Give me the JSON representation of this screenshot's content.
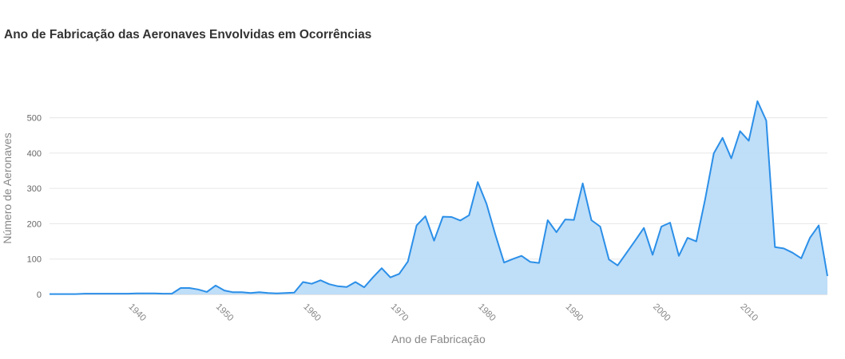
{
  "title": "Ano de Fabricação das Aeronaves Envolvidas em Ocorrências",
  "chart_data": {
    "type": "area",
    "title": "Ano de Fabricação das Aeronaves Envolvidas em Ocorrências",
    "xlabel": "Ano de Fabricação",
    "ylabel": "Número de Aeronaves",
    "xlim": [
      1931,
      2020
    ],
    "ylim": [
      0,
      560
    ],
    "x_ticks": [
      "1940",
      "1950",
      "1960",
      "1970",
      "1980",
      "1990",
      "2000",
      "2010"
    ],
    "y_ticks": [
      "0",
      "100",
      "200",
      "300",
      "400",
      "500"
    ],
    "grid": true,
    "legend": "none",
    "colors": {
      "line": "#2b8fe8",
      "fill": "#bcdcf8",
      "grid": "#e6e6e6"
    },
    "series": [
      {
        "x": [
          1931,
          1932,
          1933,
          1934,
          1935,
          1936,
          1937,
          1938,
          1939,
          1940,
          1941,
          1942,
          1943,
          1944,
          1945,
          1946,
          1947,
          1948,
          1949,
          1950,
          1951,
          1952,
          1953,
          1954,
          1955,
          1956,
          1957,
          1958,
          1959,
          1960,
          1961,
          1962,
          1963,
          1964,
          1965,
          1966,
          1967,
          1968,
          1969,
          1970,
          1971,
          1972,
          1973,
          1974,
          1975,
          1976,
          1977,
          1978,
          1979,
          1980,
          1981,
          1982,
          1983,
          1984,
          1985,
          1986,
          1987,
          1988,
          1989,
          1990,
          1991,
          1992,
          1993,
          1994,
          1995,
          1996,
          1997,
          1998,
          1999,
          2000,
          2001,
          2002,
          2003,
          2004,
          2005,
          2006,
          2007,
          2008,
          2009,
          2010,
          2011,
          2012,
          2013,
          2014,
          2015,
          2016,
          2017,
          2018,
          2019,
          2020
        ],
        "values": [
          1,
          1,
          1,
          1,
          2,
          2,
          2,
          2,
          2,
          2,
          3,
          3,
          3,
          2,
          2,
          18,
          18,
          14,
          7,
          25,
          11,
          6,
          6,
          4,
          6,
          4,
          3,
          4,
          5,
          35,
          30,
          40,
          29,
          23,
          21,
          35,
          20,
          48,
          74,
          48,
          58,
          93,
          195,
          221,
          152,
          220,
          219,
          209,
          224,
          318,
          256,
          170,
          90,
          100,
          109,
          92,
          89,
          210,
          176,
          212,
          211,
          314,
          210,
          192,
          99,
          82,
          117,
          152,
          188,
          112,
          192,
          203,
          109,
          160,
          150,
          268,
          399,
          443,
          385,
          462,
          435,
          547,
          492,
          134,
          130,
          118,
          102,
          160,
          195,
          52
        ]
      }
    ]
  }
}
